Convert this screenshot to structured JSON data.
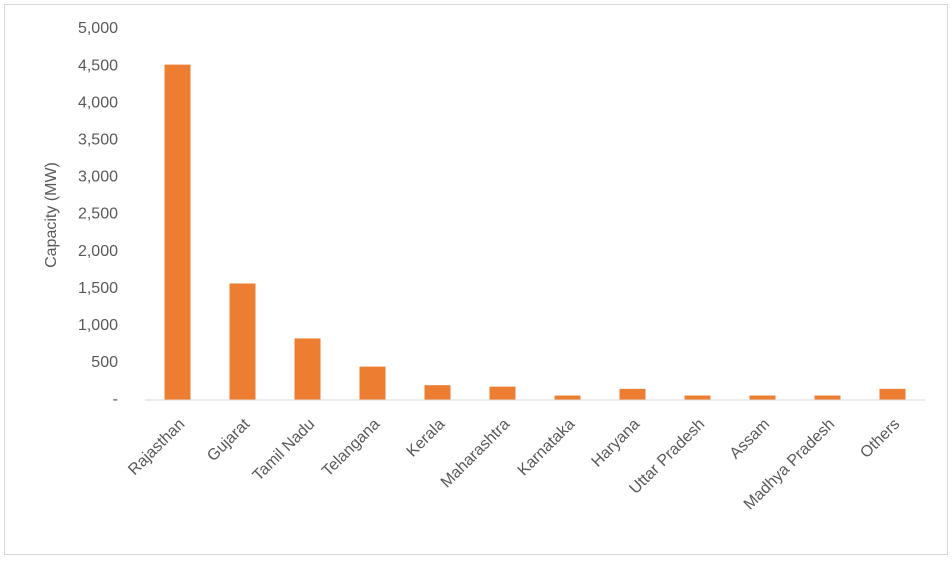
{
  "chart_data": {
    "type": "bar",
    "y_axis_label": "Capacity (MW)",
    "categories": [
      "Rajasthan",
      "Gujarat",
      "Tamil Nadu",
      "Telangana",
      "Kerala",
      "Maharashtra",
      "Karnataka",
      "Haryana",
      "Uttar Pradesh",
      "Assam",
      "Madhya Pradesh",
      "Others"
    ],
    "values": [
      4520,
      1570,
      830,
      450,
      200,
      180,
      60,
      150,
      60,
      60,
      60,
      150
    ],
    "color": "#ed7d31",
    "ylim": [
      0,
      5000
    ],
    "yticks": [
      {
        "value": 0,
        "label": "-"
      },
      500,
      {
        "value": 1000,
        "label": "1,000"
      },
      {
        "value": 1500,
        "label": "1,500"
      },
      {
        "value": 2000,
        "label": "2,000"
      },
      {
        "value": 2500,
        "label": "2,500"
      },
      {
        "value": 3000,
        "label": "3,000"
      },
      {
        "value": 3500,
        "label": "3,500"
      },
      {
        "value": 4000,
        "label": "4,000"
      },
      {
        "value": 4500,
        "label": "4,500"
      },
      {
        "value": 5000,
        "label": "5,000"
      }
    ],
    "grid": false
  }
}
